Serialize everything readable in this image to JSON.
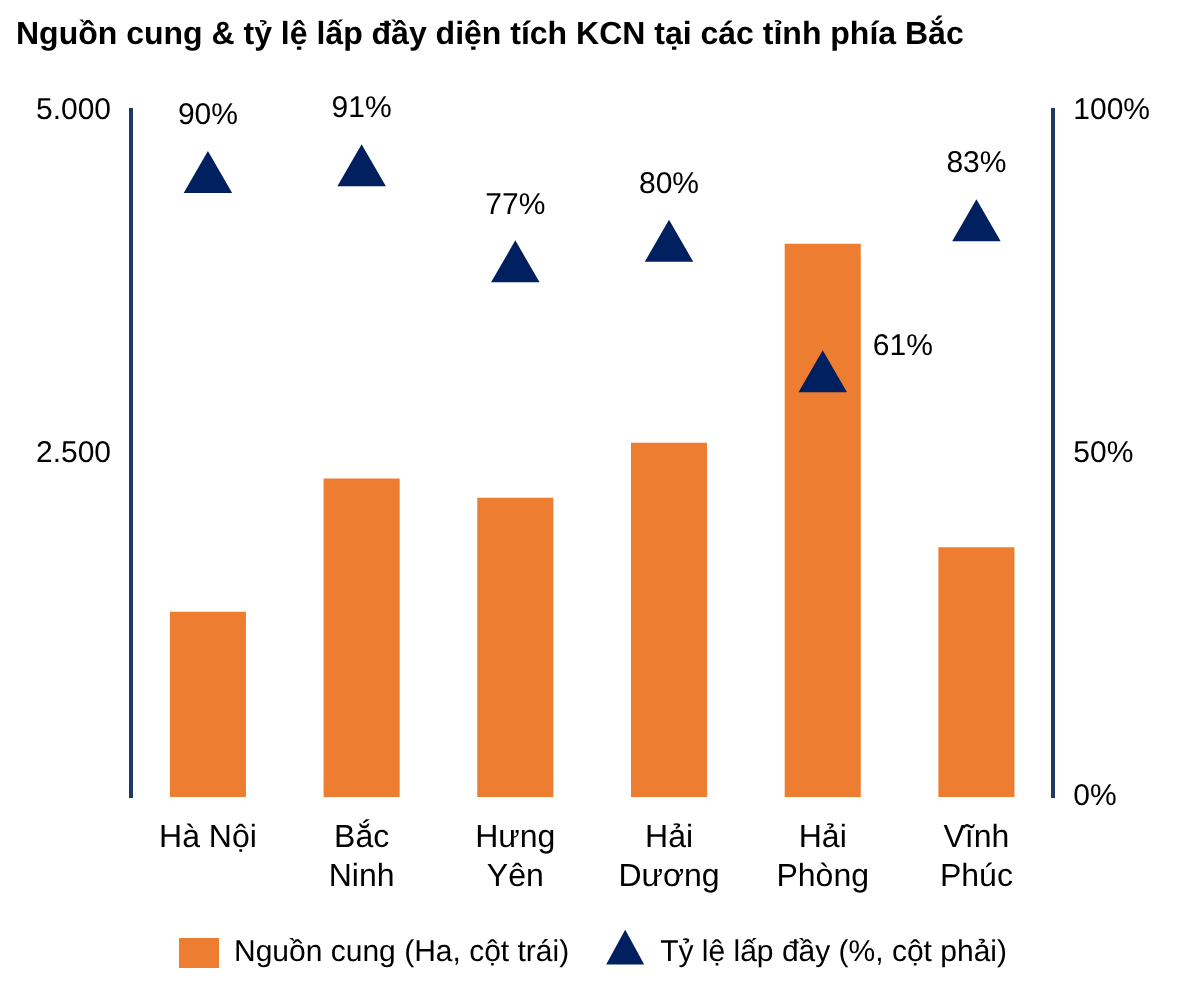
{
  "chart_data": {
    "type": "bar",
    "title": "Nguồn cung & tỷ lệ lấp đầy diện tích KCN tại các tỉnh phía Bắc",
    "categories": [
      "Hà Nội",
      "Bắc Ninh",
      "Hưng Yên",
      "Hải Dương",
      "Hải Phòng",
      "Vĩnh Phúc"
    ],
    "series": [
      {
        "name": "Nguồn cung (Ha, cột trái)",
        "color": "#ed7d31",
        "values": [
          1350,
          2320,
          2180,
          2580,
          4030,
          1820
        ]
      },
      {
        "name": "Tỷ lệ lấp đầy (%, cột phải)",
        "type": "scatter",
        "axis": "y2",
        "marker": "triangle",
        "color": "#002060",
        "x": [
          "Hà Nội",
          "Bắc Ninh",
          "Hưng Yên",
          "Hải Dương",
          "Hải Phòng",
          "Vĩnh Phúc"
        ],
        "values": [
          90,
          91,
          77,
          80,
          61,
          83
        ],
        "value_labels": [
          "90%",
          "91%",
          "77%",
          "80%",
          "61%",
          "83%"
        ]
      }
    ],
    "ylim": [
      0,
      5000
    ],
    "yticks": [
      {
        "value": 2500,
        "label": "2.500"
      },
      {
        "value": 5000,
        "label": "5.000"
      }
    ],
    "y2lim": [
      0,
      100
    ],
    "y2ticks": [
      {
        "value": 0,
        "label": "0%"
      },
      {
        "value": 50,
        "label": "50%"
      },
      {
        "value": 100,
        "label": "100%"
      }
    ],
    "grid": false,
    "legend": "bottom"
  }
}
